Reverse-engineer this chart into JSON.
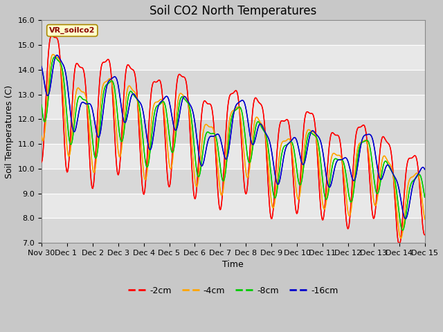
{
  "title": "Soil CO2 North Temperatures",
  "ylabel": "Soil Temperatures (C)",
  "xlabel": "Time",
  "annotation": "VR_soilco2",
  "ylim": [
    7.0,
    16.0
  ],
  "yticks": [
    7.0,
    8.0,
    9.0,
    10.0,
    11.0,
    12.0,
    13.0,
    14.0,
    15.0,
    16.0
  ],
  "legend_labels": [
    "-2cm",
    "-4cm",
    "-8cm",
    "-16cm"
  ],
  "line_colors": [
    "#ff0000",
    "#ffa500",
    "#00cc00",
    "#0000cc"
  ],
  "plot_bg_color": "#e8e8e8",
  "fig_bg_color": "#c8c8c8",
  "xtick_labels": [
    "Nov 30",
    "Dec 1 ",
    "Dec 2",
    "Dec 3",
    "Dec 4",
    "Dec 5",
    "Dec 6",
    "Dec 7",
    "Dec 8",
    "Dec 9",
    "Dec 10",
    "Dec 11",
    "Dec 12",
    "Dec 13",
    "Dec 14",
    "Dec 15"
  ],
  "title_fontsize": 12,
  "axis_label_fontsize": 9,
  "tick_fontsize": 8
}
